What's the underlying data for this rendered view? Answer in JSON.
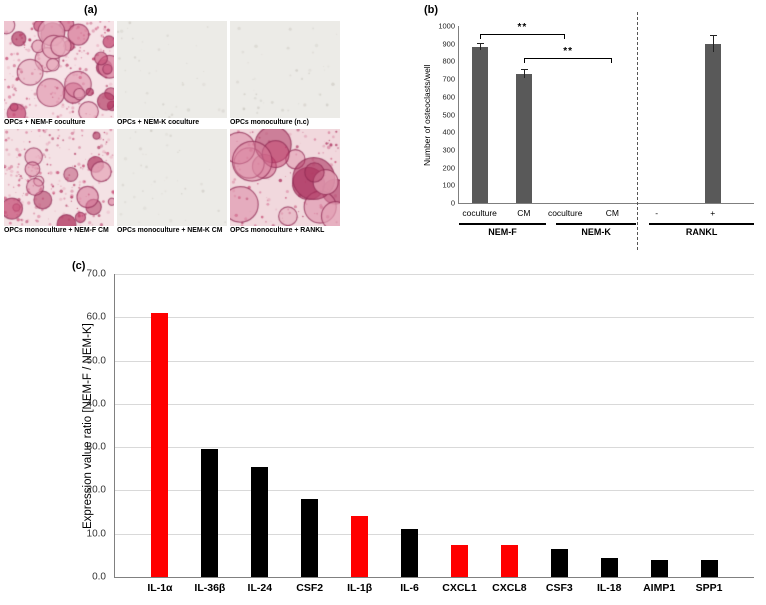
{
  "figure": {
    "panel_a": {
      "label": "(a)",
      "micrographs": [
        {
          "caption": "OPCs + NEM-F coculture",
          "style": "dense-stain"
        },
        {
          "caption": "OPCs + NEM-K coculture",
          "style": "clear"
        },
        {
          "caption": "OPCs monoculture (n.c)",
          "style": "clear"
        },
        {
          "caption": "OPCs monoculture + NEM-F CM",
          "style": "medium-stain"
        },
        {
          "caption": "OPCs monoculture + NEM-K CM",
          "style": "clear"
        },
        {
          "caption": "OPCs monoculture + RANKL",
          "style": "dense-stain-large"
        }
      ]
    },
    "panel_b": {
      "label": "(b)"
    },
    "panel_c": {
      "label": "(c)"
    }
  },
  "chart_data": [
    {
      "type": "bar",
      "panel": "b",
      "title": "",
      "ylabel": "Number of osteoclasts/well",
      "ylim": [
        0,
        1000
      ],
      "ytick_step": 100,
      "categories": [
        "coculture",
        "CM",
        "coculture",
        "CM",
        "-",
        "+"
      ],
      "values": [
        880,
        730,
        0,
        0,
        0,
        900
      ],
      "errors": [
        18,
        22,
        0,
        0,
        0,
        45
      ],
      "groups": [
        {
          "label": "NEM-F",
          "from": 0,
          "to": 1
        },
        {
          "label": "NEM-K",
          "from": 2,
          "to": 3
        },
        {
          "label": "RANKL",
          "from": 4,
          "to": 5
        }
      ],
      "significance": [
        {
          "label": "**",
          "from": 0,
          "to": 2
        },
        {
          "label": "**",
          "from": 1,
          "to": 3
        }
      ],
      "bar_color": "#595959",
      "grid": false,
      "legend": "none"
    },
    {
      "type": "bar",
      "panel": "c",
      "title": "",
      "xlabel": "",
      "ylabel": "Expression value ratio [NEM-F / NEM-K]",
      "ylim": [
        0,
        70
      ],
      "ytick_step": 10,
      "categories": [
        "IL-1α",
        "IL-36β",
        "IL-24",
        "CSF2",
        "IL-1β",
        "IL-6",
        "CXCL1",
        "CXCL8",
        "CSF3",
        "IL-18",
        "AIMP1",
        "SPP1"
      ],
      "values": [
        61.0,
        29.5,
        25.5,
        18.0,
        14.0,
        11.0,
        7.5,
        7.5,
        6.5,
        4.5,
        4.0,
        4.0
      ],
      "colors": [
        "#ff0000",
        "#000000",
        "#000000",
        "#000000",
        "#ff0000",
        "#000000",
        "#ff0000",
        "#ff0000",
        "#000000",
        "#000000",
        "#000000",
        "#000000"
      ],
      "highlight_color": "#ff0000",
      "default_color": "#000000",
      "grid": true,
      "legend": "none"
    }
  ]
}
